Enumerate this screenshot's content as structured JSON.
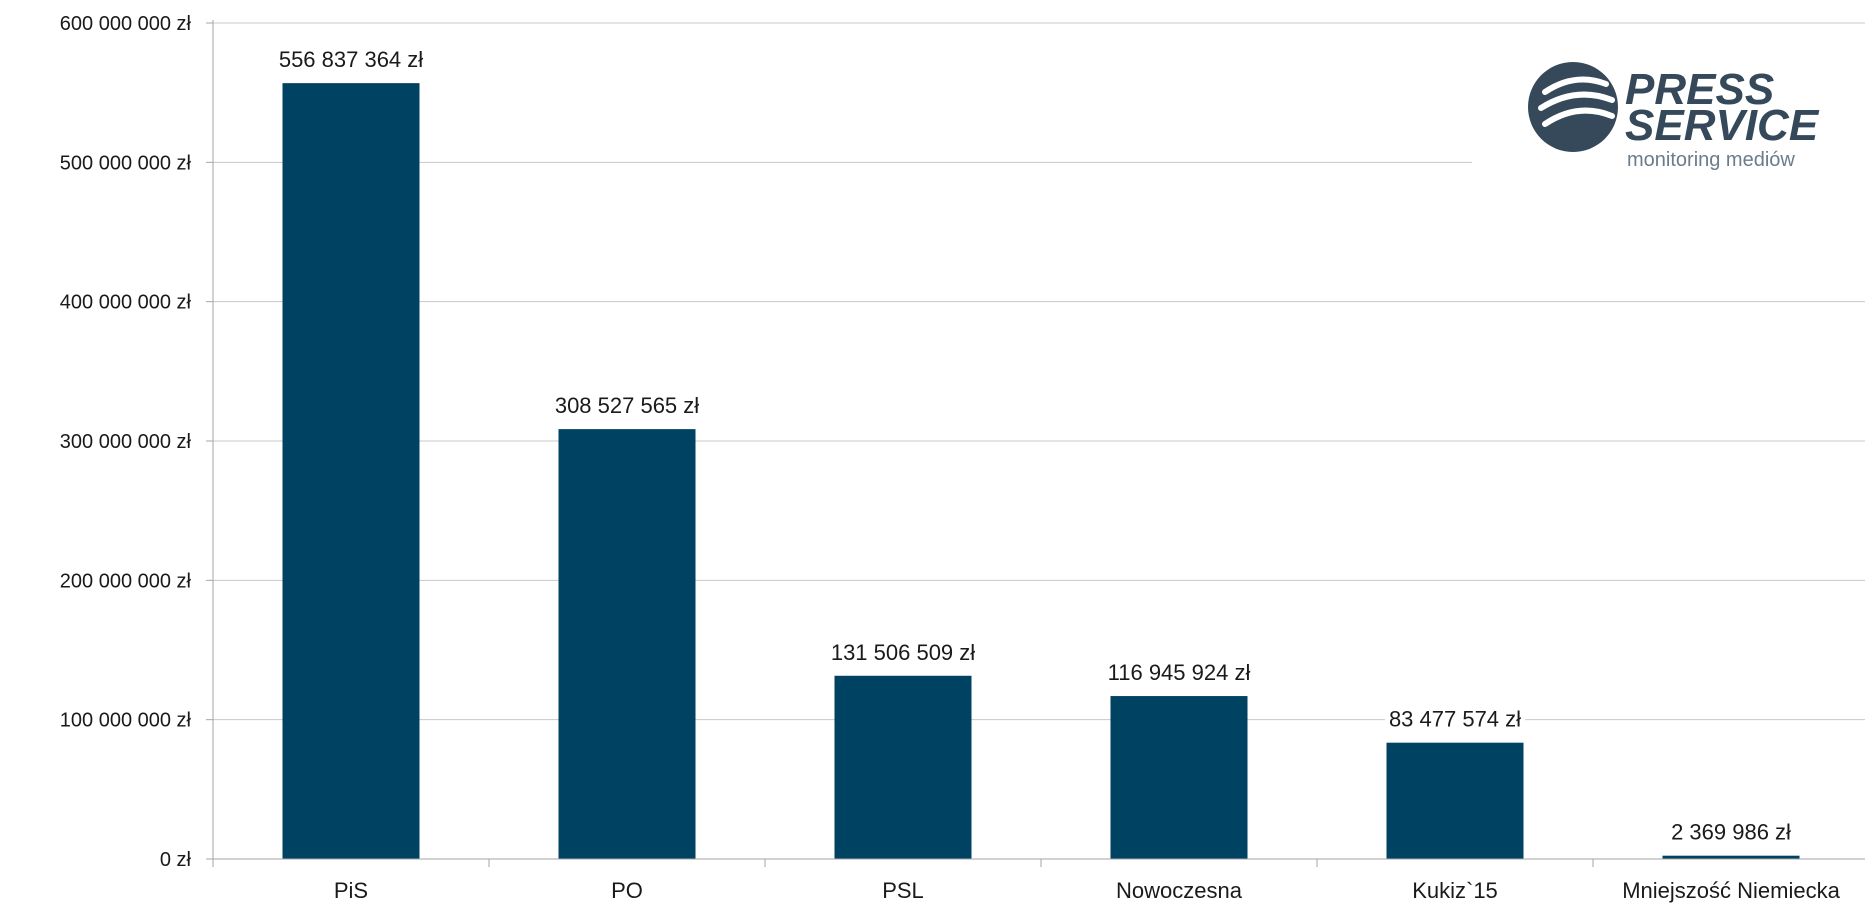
{
  "colors": {
    "bar": "#004262",
    "grid": "#c8c8c8",
    "axis": "#a6a6a6",
    "logo": "#36495a"
  },
  "logo": {
    "line1": "PRESS",
    "line2": "SERVICE",
    "line3": "monitoring mediów"
  },
  "chart_data": {
    "type": "bar",
    "title": "",
    "xlabel": "",
    "ylabel": "",
    "ylim": [
      0,
      600000000
    ],
    "yticks": [
      {
        "value": 0,
        "label": "0 zł"
      },
      {
        "value": 100000000,
        "label": "100 000 000 zł"
      },
      {
        "value": 200000000,
        "label": "200 000 000 zł"
      },
      {
        "value": 300000000,
        "label": "300 000 000 zł"
      },
      {
        "value": 400000000,
        "label": "400 000 000 zł"
      },
      {
        "value": 500000000,
        "label": "500 000 000 zł"
      },
      {
        "value": 600000000,
        "label": "600 000 000 zł"
      }
    ],
    "grid": true,
    "categories": [
      "PiS",
      "PO",
      "PSL",
      "Nowoczesna",
      "Kukiz`15",
      "Mniejszość Niemiecka"
    ],
    "values": [
      556837364,
      308527565,
      131506509,
      116945924,
      83477574,
      2369986
    ],
    "data_labels": [
      "556 837 364 zł",
      "308 527 565 zł",
      "131 506 509 zł",
      "116 945 924 zł",
      "83 477 574 zł",
      "2 369 986 zł"
    ]
  }
}
